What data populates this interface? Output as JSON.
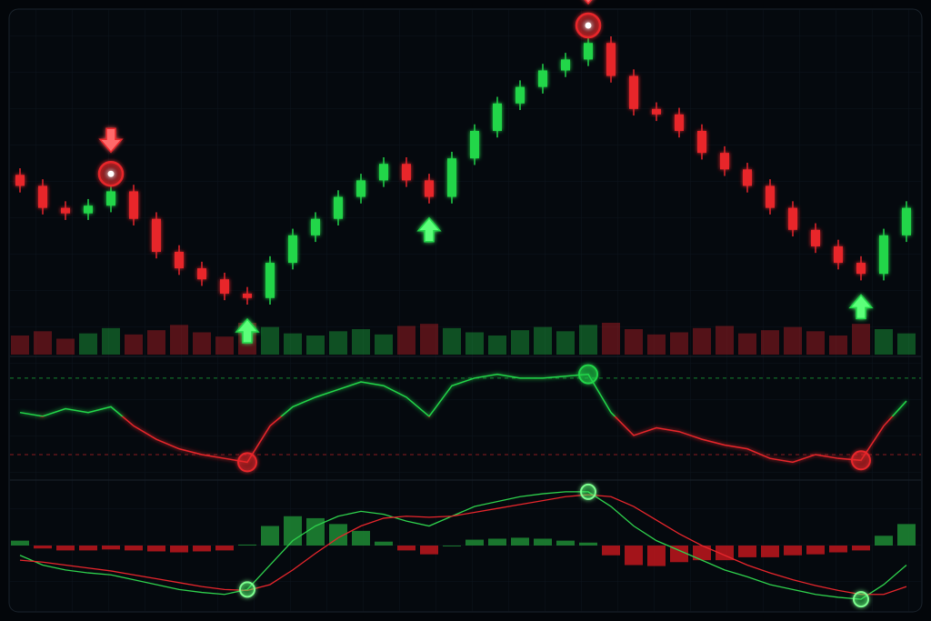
{
  "chart_data": [
    {
      "type": "candlestick",
      "open": [
        200,
        190,
        170,
        165,
        172,
        185,
        160,
        130,
        115,
        105,
        92,
        88,
        120,
        145,
        160,
        180,
        195,
        210,
        195,
        180,
        215,
        240,
        265,
        280,
        295,
        305,
        320,
        290,
        260,
        255,
        240,
        220,
        205,
        190,
        170,
        150,
        135,
        120,
        110,
        145
      ],
      "close": [
        190,
        170,
        165,
        172,
        185,
        160,
        130,
        115,
        105,
        92,
        88,
        120,
        145,
        160,
        180,
        195,
        210,
        195,
        180,
        215,
        240,
        265,
        280,
        295,
        305,
        320,
        290,
        260,
        255,
        240,
        220,
        205,
        190,
        170,
        150,
        135,
        120,
        110,
        145,
        170
      ],
      "high": [
        206,
        196,
        176,
        178,
        191,
        191,
        166,
        136,
        121,
        111,
        98,
        126,
        151,
        166,
        186,
        201,
        216,
        216,
        201,
        221,
        246,
        271,
        286,
        301,
        311,
        326,
        326,
        296,
        266,
        261,
        246,
        226,
        211,
        196,
        176,
        156,
        141,
        126,
        151,
        176
      ],
      "low": [
        184,
        164,
        159,
        159,
        166,
        154,
        124,
        109,
        99,
        86,
        82,
        82,
        114,
        139,
        154,
        174,
        189,
        189,
        174,
        174,
        209,
        234,
        259,
        274,
        289,
        299,
        284,
        254,
        249,
        234,
        214,
        199,
        184,
        164,
        144,
        129,
        114,
        104,
        104,
        139
      ],
      "volume": [
        18,
        22,
        15,
        20,
        25,
        19,
        23,
        28,
        21,
        17,
        30,
        26,
        20,
        18,
        22,
        24,
        19,
        27,
        29,
        25,
        21,
        18,
        23,
        26,
        22,
        28,
        30,
        24,
        19,
        21,
        25,
        27,
        20,
        23,
        26,
        22,
        18,
        29,
        24,
        20
      ],
      "signals": [
        {
          "index": 4,
          "kind": "sell"
        },
        {
          "index": 10,
          "kind": "buy"
        },
        {
          "index": 18,
          "kind": "buy"
        },
        {
          "index": 25,
          "kind": "sell"
        },
        {
          "index": 37,
          "kind": "buy"
        }
      ],
      "colors": {
        "up": "#22d64a",
        "down": "#e8262c"
      }
    },
    {
      "type": "oscillator",
      "values": [
        52,
        50,
        54,
        52,
        55,
        45,
        38,
        33,
        30,
        28,
        26,
        45,
        55,
        60,
        64,
        68,
        66,
        60,
        50,
        66,
        70,
        72,
        70,
        70,
        71,
        72,
        52,
        40,
        44,
        42,
        38,
        35,
        33,
        28,
        26,
        30,
        28,
        27,
        45,
        58
      ],
      "levels": [
        70,
        30
      ],
      "markers": [
        {
          "index": 10
        },
        {
          "index": 25
        },
        {
          "index": 37
        }
      ],
      "colors": {
        "up": "#22d64a",
        "down": "#e8262c"
      }
    },
    {
      "type": "macd",
      "series": [
        {
          "color": "#2fd24d",
          "values": [
            -1,
            -2,
            -2.5,
            -2.8,
            -3,
            -3.5,
            -4,
            -4.5,
            -4.8,
            -5,
            -4.5,
            -2,
            0.5,
            2,
            3,
            3.5,
            3.2,
            2.5,
            2,
            3,
            4,
            4.5,
            5,
            5.3,
            5.5,
            5.5,
            4,
            2,
            0.5,
            -0.5,
            -1.5,
            -2.5,
            -3.2,
            -4,
            -4.5,
            -5,
            -5.3,
            -5.5,
            -4,
            -2
          ]
        },
        {
          "color": "#e8262c",
          "values": [
            -1.5,
            -1.7,
            -2,
            -2.3,
            -2.6,
            -3,
            -3.4,
            -3.8,
            -4.2,
            -4.5,
            -4.6,
            -4,
            -2.5,
            -0.8,
            0.8,
            2,
            2.8,
            3,
            2.9,
            3,
            3.4,
            3.8,
            4.2,
            4.6,
            5,
            5.2,
            5,
            4,
            2.6,
            1.2,
            0,
            -1,
            -2,
            -2.8,
            -3.5,
            -4.1,
            -4.6,
            -5,
            -5,
            -4.2
          ]
        }
      ],
      "histogram": [
        0.5,
        -0.3,
        -0.5,
        -0.5,
        -0.4,
        -0.5,
        -0.6,
        -0.7,
        -0.6,
        -0.5,
        0.1,
        2,
        3,
        2.8,
        2.2,
        1.5,
        0.4,
        -0.5,
        -0.9,
        0,
        0.6,
        0.7,
        0.8,
        0.7,
        0.5,
        0.3,
        -1,
        -2,
        -2.1,
        -1.7,
        -1.5,
        -1.5,
        -1.2,
        -1.2,
        -1,
        -0.9,
        -0.7,
        -0.5,
        1,
        2.2
      ],
      "markers": [
        {
          "index": 10
        },
        {
          "index": 25
        },
        {
          "index": 37
        }
      ],
      "colors": {
        "up": "#1e8a34",
        "down": "#c0161c"
      }
    }
  ]
}
